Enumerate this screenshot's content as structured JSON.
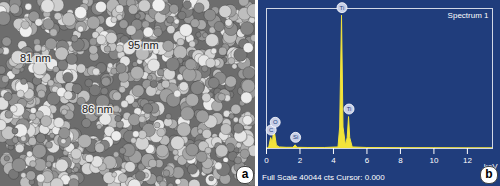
{
  "image": {
    "panel_label": "a",
    "annotations": [
      "81 nm",
      "95 nm",
      "86 nm"
    ]
  },
  "chart_data": {
    "type": "area",
    "panel_label": "b",
    "title": "Spectrum 1",
    "footer": "Full Scale 40044 cts Cursor: 0.000",
    "x_label": "keV",
    "color": "#f2e33a",
    "x": [
      0,
      0.15,
      0.28,
      0.38,
      0.45,
      0.52,
      0.62,
      0.8,
      1.2,
      1.6,
      1.74,
      1.85,
      2.5,
      3.5,
      4.3,
      4.4,
      4.51,
      4.6,
      4.75,
      4.85,
      4.93,
      5.0,
      5.15,
      6,
      8,
      10,
      12,
      13.5
    ],
    "values": [
      0,
      0,
      3000,
      1500,
      5200,
      4000,
      800,
      300,
      200,
      200,
      900,
      200,
      150,
      150,
      300,
      6000,
      38000,
      6000,
      800,
      3000,
      9000,
      3000,
      300,
      150,
      80,
      50,
      30,
      20
    ],
    "peak_labels": [
      {
        "text": "C",
        "x": 0.28,
        "y": 3000
      },
      {
        "text": "O",
        "x": 0.52,
        "y": 5200
      },
      {
        "text": "Si",
        "x": 1.74,
        "y": 900
      },
      {
        "text": "Ti",
        "x": 4.51,
        "y": 38000
      },
      {
        "text": "Ti",
        "x": 4.93,
        "y": 9000
      }
    ],
    "xlim": [
      0,
      13.5
    ],
    "xticks": [
      0,
      2,
      4,
      6,
      8,
      10,
      12
    ],
    "ylim": [
      0,
      40044
    ],
    "tick_labels": "x",
    "grid": false
  }
}
